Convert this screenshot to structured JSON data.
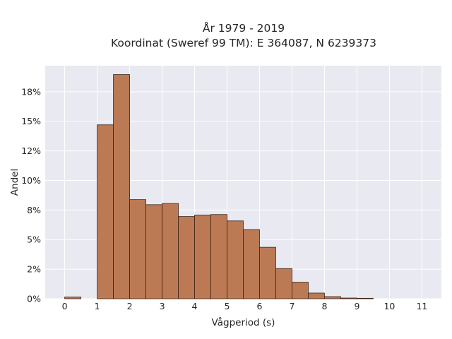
{
  "chart_data": {
    "type": "bar",
    "title_lines": [
      "År 1979 - 2019",
      "Koordinat (Sweref 99 TM): E 364087, N 6239373"
    ],
    "xlabel": "Vågperiod (s)",
    "ylabel": "Andel",
    "bin_width": 0.5,
    "bin_starts": [
      0,
      0.5,
      1,
      1.5,
      2,
      2.5,
      3,
      3.5,
      4,
      4.5,
      5,
      5.5,
      6,
      6.5,
      7,
      7.5,
      8,
      8.5,
      9,
      9.5,
      10,
      10.5,
      11
    ],
    "values": [
      0.0015,
      0,
      0.147,
      0.1895,
      0.0838,
      0.0795,
      0.0805,
      0.0695,
      0.0708,
      0.0712,
      0.0658,
      0.0585,
      0.0435,
      0.0255,
      0.014,
      0.0048,
      0.0018,
      0.0006,
      0.0004,
      0,
      0,
      0,
      0
    ],
    "xlim": [
      -0.6,
      11.6
    ],
    "ylim": [
      0,
      0.197
    ],
    "xticks": [
      0,
      1,
      2,
      3,
      4,
      5,
      6,
      7,
      8,
      9,
      10,
      11
    ],
    "xtick_labels": [
      "0",
      "1",
      "2",
      "3",
      "4",
      "5",
      "6",
      "7",
      "8",
      "9",
      "10",
      "11"
    ],
    "yticks": [
      0,
      0.025,
      0.05,
      0.075,
      0.1,
      0.125,
      0.15,
      0.175
    ],
    "ytick_labels": [
      "0%",
      "2%",
      "5%",
      "8%",
      "10%",
      "12%",
      "15%",
      "18%"
    ],
    "bar_color": "#bc7a54",
    "bar_edge_color": "#3d2416",
    "grid": true,
    "plot_bg": "#e9e9f1",
    "grid_color": "#ffffff"
  }
}
